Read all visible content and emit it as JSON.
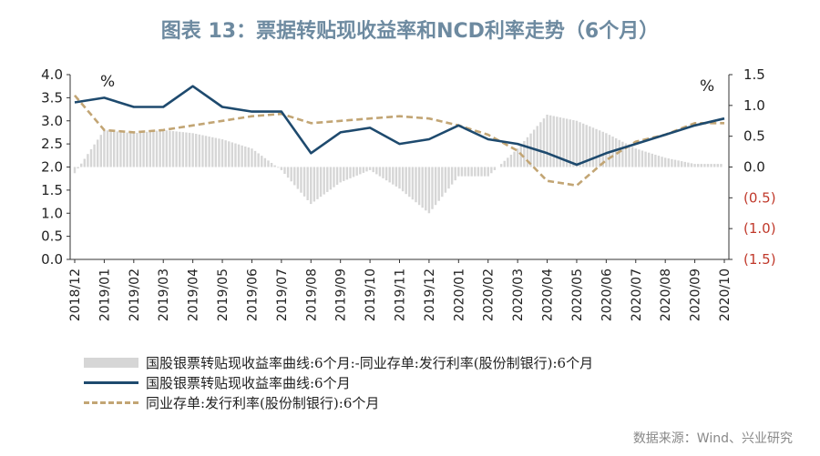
{
  "title": "图表 13：票据转贴现收益率和NCD利率走势（6个月）",
  "source": "数据来源：Wind、兴业研究",
  "colors": {
    "bars": "#d6d6d6",
    "bill_line": "#1e4a6e",
    "ncd_line": "#c2a574",
    "neg_label": "#c0392b"
  },
  "chart_data": {
    "type": "line",
    "left_unit": "%",
    "right_unit": "%",
    "left_axis": {
      "ticks": [
        "4.0",
        "3.5",
        "3.0",
        "2.5",
        "2.0",
        "1.5",
        "1.0",
        "0.5",
        "0.0"
      ],
      "ylim": [
        0,
        4
      ]
    },
    "right_axis": {
      "ticks": [
        "1.5",
        "1.0",
        "0.5",
        "0.0",
        "(0.5)",
        "(1.0)",
        "(1.5)"
      ],
      "ylim": [
        -1.5,
        1.5
      ]
    },
    "x_ticks": [
      "2018/12",
      "2019/01",
      "2019/02",
      "2019/03",
      "2019/04",
      "2019/05",
      "2019/06",
      "2019/07",
      "2019/08",
      "2019/09",
      "2019/10",
      "2019/11",
      "2019/12",
      "2020/01",
      "2020/02",
      "2020/03",
      "2020/04",
      "2020/05",
      "2020/06",
      "2020/07",
      "2020/08",
      "2020/09",
      "2020/10"
    ],
    "x_domain": [
      "2018/12",
      "2020/10"
    ],
    "series": [
      {
        "name": "国股银票转贴现收益率曲线:6个月:-同业存单:发行利率(股份制银行):6个月",
        "type": "bar",
        "axis": "right",
        "x": [
          "2018/12",
          "2019/01",
          "2019/02",
          "2019/03",
          "2019/04",
          "2019/05",
          "2019/06",
          "2019/07",
          "2019/08",
          "2019/09",
          "2019/10",
          "2019/11",
          "2019/12",
          "2020/01",
          "2020/02",
          "2020/03",
          "2020/04",
          "2020/05",
          "2020/06",
          "2020/07",
          "2020/08",
          "2020/09",
          "2020/10"
        ],
        "values": [
          -0.1,
          0.6,
          0.55,
          0.6,
          0.55,
          0.45,
          0.3,
          -0.05,
          -0.6,
          -0.25,
          -0.05,
          -0.35,
          -0.75,
          -0.15,
          -0.15,
          0.3,
          0.85,
          0.75,
          0.55,
          0.3,
          0.15,
          0.05,
          0.05
        ]
      },
      {
        "name": "国股银票转贴现收益率曲线:6个月",
        "type": "line",
        "axis": "left",
        "x": [
          "2018/12",
          "2019/01",
          "2019/02",
          "2019/03",
          "2019/04",
          "2019/05",
          "2019/06",
          "2019/07",
          "2019/08",
          "2019/09",
          "2019/10",
          "2019/11",
          "2019/12",
          "2020/01",
          "2020/02",
          "2020/03",
          "2020/04",
          "2020/05",
          "2020/06",
          "2020/07",
          "2020/08",
          "2020/09",
          "2020/10"
        ],
        "values": [
          3.4,
          3.5,
          3.3,
          3.3,
          3.75,
          3.3,
          3.2,
          3.2,
          2.3,
          2.75,
          2.85,
          2.5,
          2.6,
          2.9,
          2.6,
          2.5,
          2.3,
          2.05,
          2.3,
          2.5,
          2.7,
          2.9,
          3.05
        ]
      },
      {
        "name": "同业存单:发行利率(股份制银行):6个月",
        "type": "line",
        "axis": "left",
        "dashed": true,
        "x": [
          "2018/12",
          "2019/01",
          "2019/02",
          "2019/03",
          "2019/04",
          "2019/05",
          "2019/06",
          "2019/07",
          "2019/08",
          "2019/09",
          "2019/10",
          "2019/11",
          "2019/12",
          "2020/01",
          "2020/02",
          "2020/03",
          "2020/04",
          "2020/05",
          "2020/06",
          "2020/07",
          "2020/08",
          "2020/09",
          "2020/10"
        ],
        "values": [
          3.55,
          2.8,
          2.75,
          2.8,
          2.9,
          3.0,
          3.1,
          3.15,
          2.95,
          3.0,
          3.05,
          3.1,
          3.05,
          2.9,
          2.7,
          2.35,
          1.7,
          1.6,
          2.15,
          2.55,
          2.7,
          2.95,
          2.95
        ]
      }
    ]
  }
}
